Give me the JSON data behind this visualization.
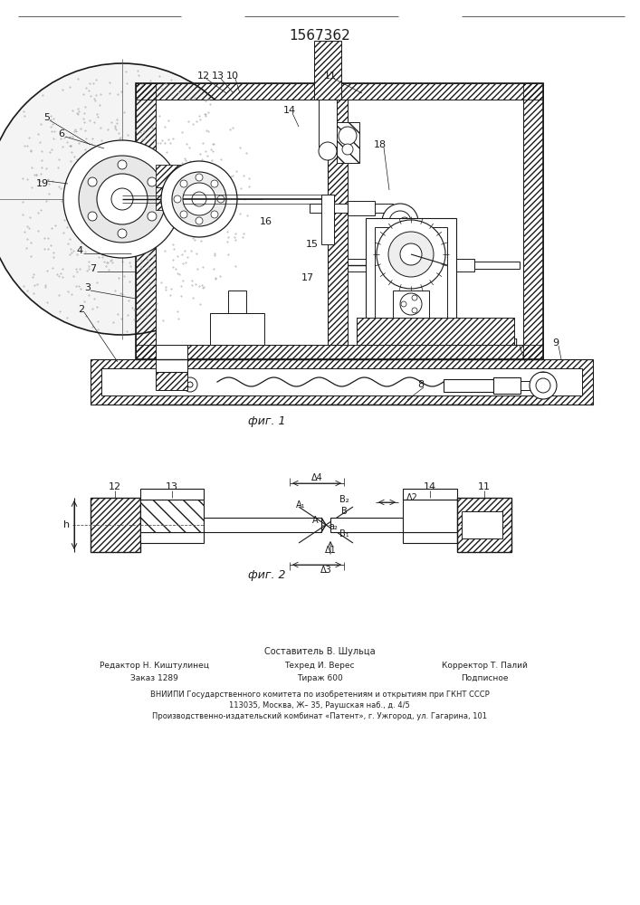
{
  "title": "1567362",
  "fig1_caption": "фиг. 1",
  "fig2_caption": "фиг. 2",
  "bg_color": "#ffffff",
  "line_color": "#1a1a1a",
  "footer_line0": "Составитель В. Шульца",
  "footer_line1a": "Редактор Н. Киштулинец",
  "footer_line1b": "Техред И. Верес",
  "footer_line1c": "Корректор Т. Палий",
  "footer_line2a": "Заказ 1289",
  "footer_line2b": "Тираж 600",
  "footer_line2c": "Подписное",
  "footer_line3": "ВНИИПИ Государственного комитета по изобретениям и открытиям при ГКНТ СССР",
  "footer_line4": "113035, Москва, Ж– 35, Раушская наб., д. 4/5",
  "footer_line5": "Производственно-издательский комбинат «Патент», г. Ужгород, ул. Гагарина, 101"
}
